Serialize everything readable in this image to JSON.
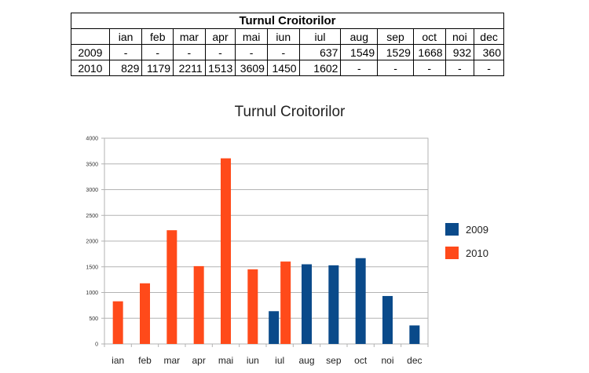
{
  "table": {
    "title": "Turnul Croitorilor",
    "months": [
      "ian",
      "feb",
      "mar",
      "apr",
      "mai",
      "iun",
      "iul",
      "aug",
      "sep",
      "oct",
      "noi",
      "dec"
    ],
    "rows": [
      {
        "year": "2009",
        "cells": [
          "-",
          "-",
          "-",
          "-",
          "-",
          "-",
          "637",
          "1549",
          "1529",
          "1668",
          "932",
          "360"
        ]
      },
      {
        "year": "2010",
        "cells": [
          "829",
          "1179",
          "2211",
          "1513",
          "3609",
          "1450",
          "1602",
          "-",
          "-",
          "-",
          "-",
          "-"
        ]
      }
    ]
  },
  "chart_data": {
    "type": "bar",
    "title": "Turnul Croitorilor",
    "categories": [
      "ian",
      "feb",
      "mar",
      "apr",
      "mai",
      "iun",
      "iul",
      "aug",
      "sep",
      "oct",
      "noi",
      "dec"
    ],
    "series": [
      {
        "name": "2009",
        "color": "#0a4a8a",
        "values": [
          null,
          null,
          null,
          null,
          null,
          null,
          637,
          1549,
          1529,
          1668,
          932,
          360
        ]
      },
      {
        "name": "2010",
        "color": "#ff4a1a",
        "values": [
          829,
          1179,
          2211,
          1513,
          3609,
          1450,
          1602,
          null,
          null,
          null,
          null,
          null
        ]
      }
    ],
    "yticks": [
      0,
      500,
      1000,
      1500,
      2000,
      2500,
      3000,
      3500,
      4000
    ],
    "ylim": [
      0,
      4000
    ],
    "grid": true,
    "legend": "right"
  }
}
